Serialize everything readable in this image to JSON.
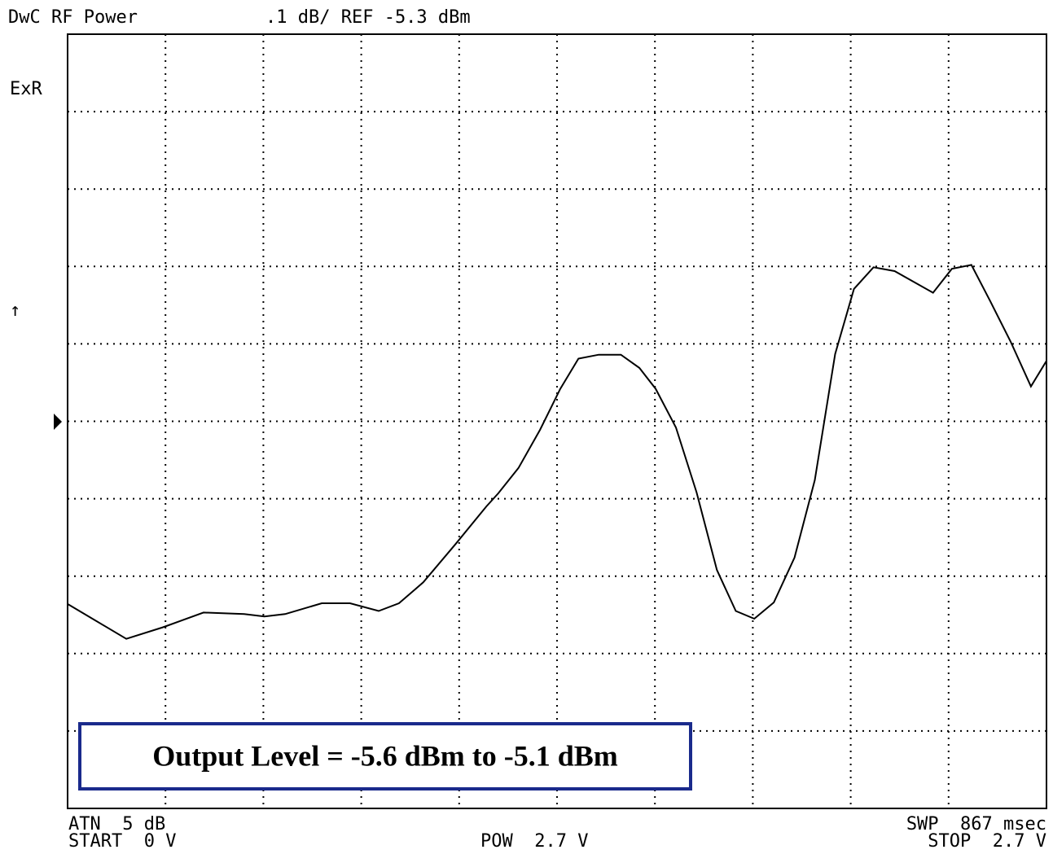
{
  "chart_data": {
    "type": "line",
    "title": "DwC RF Power",
    "subtitle": ".1 dB/ REF -5.3 dBm",
    "channel_label": "ExR",
    "marker_label": "↑",
    "footer": {
      "atn": "ATN  5 dB",
      "start": "START  0 V",
      "pow": "POW  2.7 V",
      "swp": "SWP  867 msec",
      "stop": "STOP  2.7 V"
    },
    "annotation": "Output Level = -5.6 dBm to -5.1 dBm",
    "x": [
      0,
      0.162,
      0.263,
      0.375,
      0.487,
      0.543,
      0.6,
      0.701,
      0.779,
      0.858,
      0.914,
      0.981,
      1.071,
      1.155,
      1.188,
      1.244,
      1.303,
      1.359,
      1.409,
      1.465,
      1.526,
      1.577,
      1.622,
      1.678,
      1.735,
      1.791,
      1.843,
      1.894,
      1.948,
      2.005,
      2.061,
      2.117,
      2.169,
      2.223,
      2.281,
      2.387,
      2.439,
      2.493,
      2.545,
      2.601,
      2.657,
      2.7
    ],
    "series": [
      {
        "name": "RF Power",
        "color": "#000000",
        "values": [
          -5.536,
          -5.581,
          -5.566,
          -5.547,
          -5.549,
          -5.552,
          -5.549,
          -5.535,
          -5.535,
          -5.545,
          -5.535,
          -5.508,
          -5.458,
          -5.41,
          -5.393,
          -5.36,
          -5.311,
          -5.258,
          -5.219,
          -5.214,
          -5.214,
          -5.231,
          -5.258,
          -5.308,
          -5.392,
          -5.492,
          -5.545,
          -5.555,
          -5.534,
          -5.476,
          -5.376,
          -5.213,
          -5.129,
          -5.101,
          -5.106,
          -5.134,
          -5.103,
          -5.098,
          -5.145,
          -5.197,
          -5.255,
          -5.222
        ]
      }
    ],
    "xlim": [
      0,
      2.7
    ],
    "xticks": [
      0.27,
      0.54,
      0.81,
      1.08,
      1.35,
      1.62,
      1.89,
      2.16,
      2.43
    ],
    "ylim": [
      -5.8,
      -4.8
    ],
    "yticks": [
      -5.7,
      -5.6,
      -5.5,
      -5.4,
      -5.3,
      -5.2,
      -5.1,
      -5.0,
      -4.9
    ],
    "grid": true
  }
}
